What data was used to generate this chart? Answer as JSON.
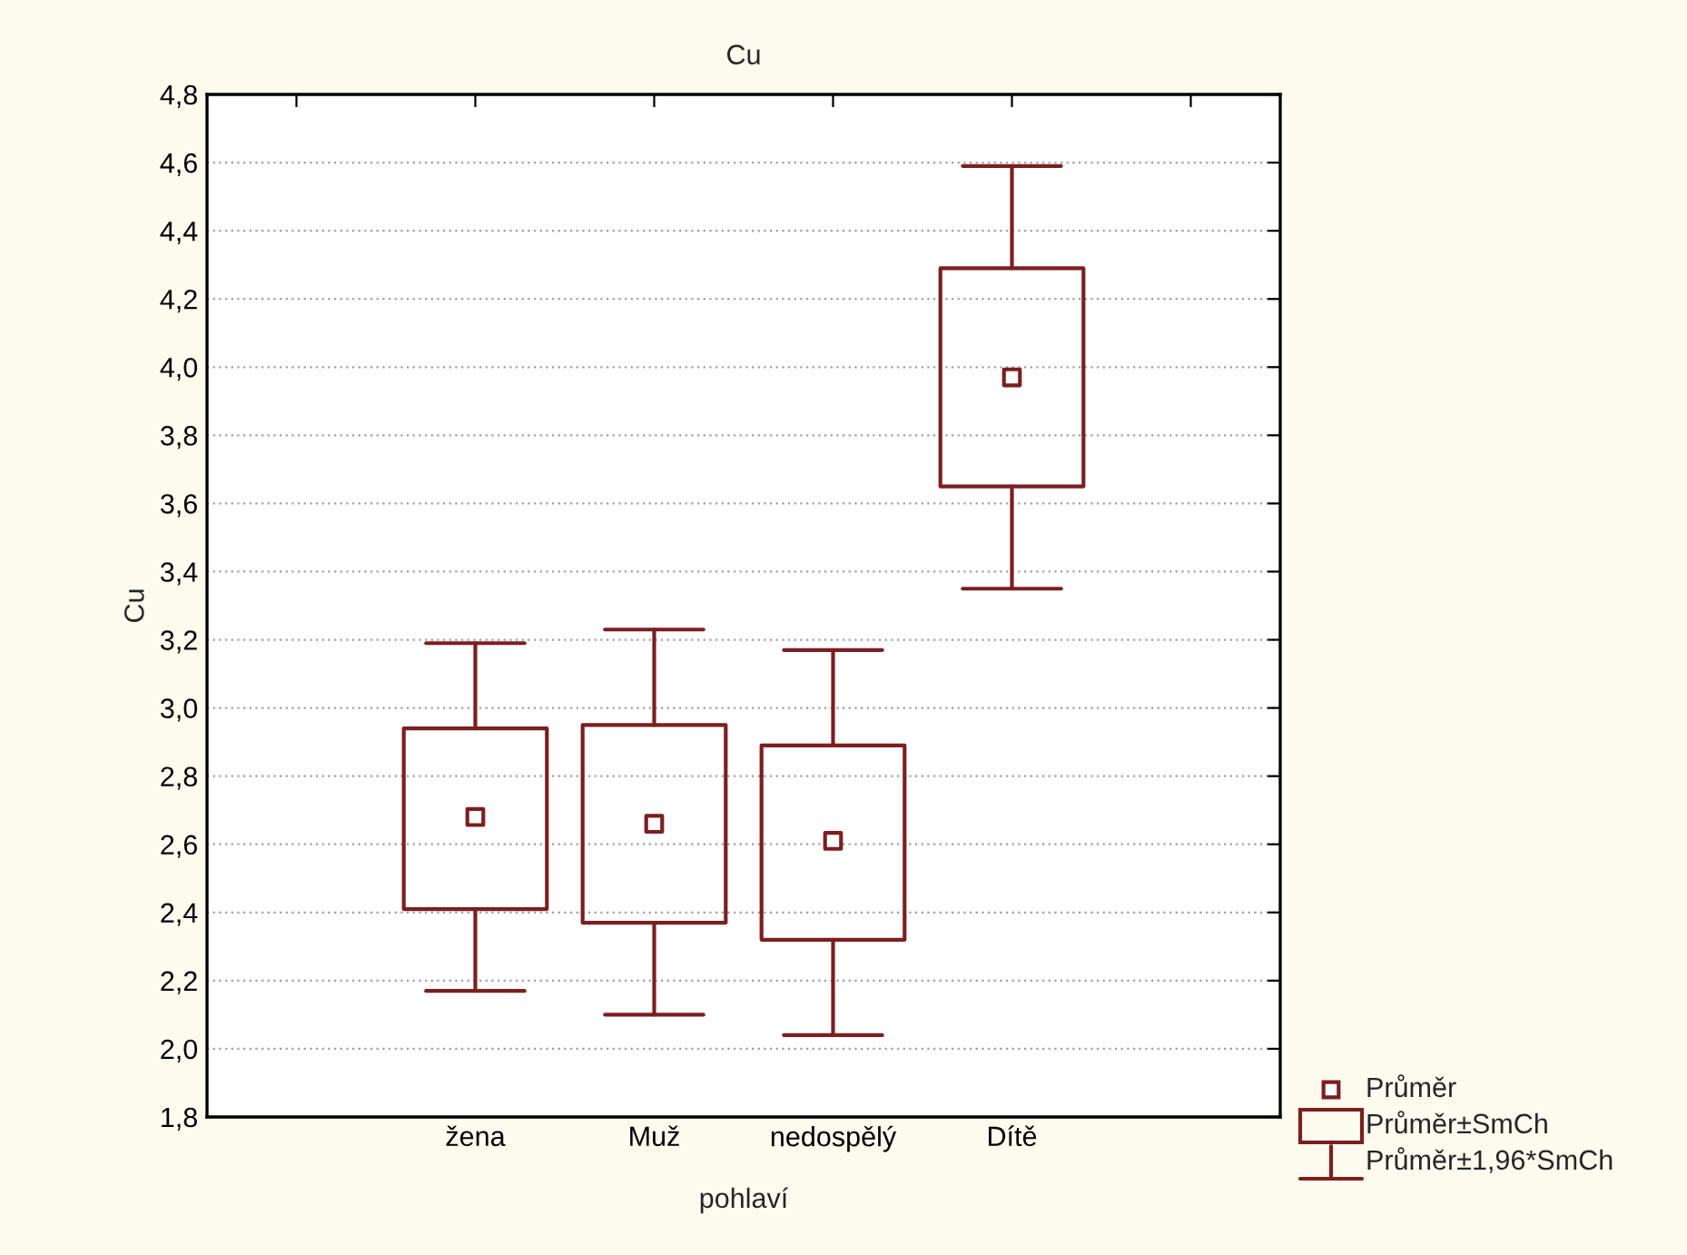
{
  "chart_data": {
    "type": "box",
    "title": "Cu",
    "xlabel": "pohlaví",
    "ylabel": "Cu",
    "categories": [
      null,
      "žena",
      "Muž",
      "nedospělý",
      "Dítě",
      null
    ],
    "boxes": [
      null,
      {
        "low": 2.17,
        "q1": 2.41,
        "median": 2.68,
        "q3": 2.94,
        "high": 3.19
      },
      {
        "low": 2.1,
        "q1": 2.37,
        "median": 2.66,
        "q3": 2.95,
        "high": 3.23
      },
      {
        "low": 2.04,
        "q1": 2.32,
        "median": 2.61,
        "q3": 2.89,
        "high": 3.17
      },
      {
        "low": 3.35,
        "q1": 3.65,
        "median": 3.97,
        "q3": 4.29,
        "high": 4.59
      },
      null
    ],
    "color": "#7b1f1f",
    "ylim": [
      1.8,
      4.8
    ],
    "yticks": [
      {
        "value": 1.8,
        "label": "1,8"
      },
      {
        "value": 2.0,
        "label": "2,0"
      },
      {
        "value": 2.2,
        "label": "2,2"
      },
      {
        "value": 2.4,
        "label": "2,4"
      },
      {
        "value": 2.6,
        "label": "2,6"
      },
      {
        "value": 2.8,
        "label": "2,8"
      },
      {
        "value": 3.0,
        "label": "3,0"
      },
      {
        "value": 3.2,
        "label": "3,2"
      },
      {
        "value": 3.4,
        "label": "3,4"
      },
      {
        "value": 3.6,
        "label": "3,6"
      },
      {
        "value": 3.8,
        "label": "3,8"
      },
      {
        "value": 4.0,
        "label": "4,0"
      },
      {
        "value": 4.2,
        "label": "4,2"
      },
      {
        "value": 4.4,
        "label": "4,4"
      },
      {
        "value": 4.6,
        "label": "4,6"
      },
      {
        "value": 4.8,
        "label": "4,8"
      }
    ],
    "grid": "y",
    "annotations": [
      "Průměr",
      "Průměr±SmCh",
      "Průměr±1,96*SmCh"
    ]
  }
}
